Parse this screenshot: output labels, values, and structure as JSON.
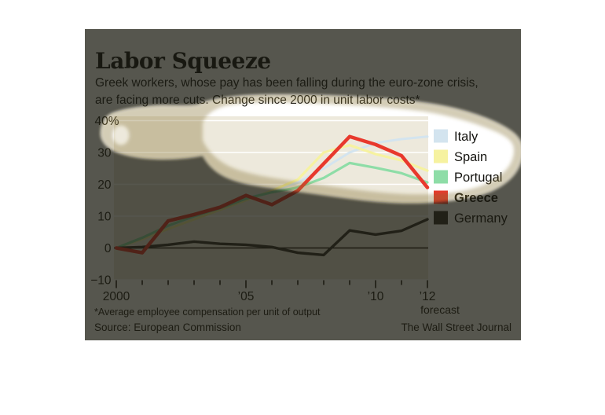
{
  "page": {
    "background": "#ffffff"
  },
  "card": {
    "background": "#ffffff"
  },
  "header": {
    "title": "Labor Squeeze",
    "subtitle_line1": "Greek workers, whose pay has been falling during the euro-zone crisis,",
    "subtitle_line2": "are facing more cuts. Change since 2000 in unit labor costs*"
  },
  "chart_data": {
    "type": "line",
    "title": "Labor Squeeze",
    "x": [
      2000,
      2001,
      2002,
      2003,
      2004,
      2005,
      2006,
      2007,
      2008,
      2009,
      2010,
      2011,
      2012
    ],
    "series": [
      {
        "name": "Italy",
        "color": "#d3e4ef",
        "width": 3,
        "emphasis": false,
        "values": [
          0,
          3.0,
          6.5,
          9.5,
          12.5,
          15.5,
          18.0,
          20.5,
          25.0,
          30.0,
          33.0,
          34.2,
          35.0
        ]
      },
      {
        "name": "Spain",
        "color": "#f6f2a0",
        "width": 3.2,
        "emphasis": false,
        "values": [
          0,
          2.8,
          6.0,
          9.0,
          12.0,
          15.0,
          18.0,
          21.5,
          30.0,
          32.3,
          29.5,
          27.5,
          24.3
        ]
      },
      {
        "name": "Portugal",
        "color": "#8edda7",
        "width": 3.2,
        "emphasis": false,
        "values": [
          0,
          3.2,
          7.0,
          10.0,
          12.5,
          15.5,
          17.5,
          19.0,
          22.0,
          26.7,
          25.2,
          23.5,
          20.6
        ]
      },
      {
        "name": "Greece",
        "color": "#e8392d",
        "width": 4.5,
        "emphasis": true,
        "values": [
          0,
          -1.5,
          8.5,
          10.5,
          12.8,
          16.5,
          13.6,
          18.0,
          26.5,
          35.0,
          32.5,
          29.0,
          19.0
        ]
      },
      {
        "name": "Germany",
        "color": "#32302c",
        "width": 3.4,
        "emphasis": false,
        "values": [
          0,
          0.3,
          1.0,
          2.0,
          1.3,
          1.0,
          0.3,
          -1.5,
          -2.2,
          5.5,
          4.2,
          5.4,
          9.0
        ]
      }
    ],
    "ylim": [
      -10,
      40
    ],
    "yticks": [
      40,
      30,
      20,
      10,
      0,
      -10
    ],
    "ytick_labels": [
      "40%",
      "30",
      "20",
      "10",
      "0",
      "−10"
    ],
    "x_axis_labels": [
      {
        "year": 2000,
        "label": "2000"
      },
      {
        "year": 2005,
        "label": "’05"
      },
      {
        "year": 2010,
        "label": "’10"
      },
      {
        "year": 2012,
        "label": "’12"
      }
    ],
    "grid": true,
    "legend_position": "right",
    "plot_bg": "#ede9dc",
    "grid_color": "#ffffff",
    "zero_line_color": "#1f1d18",
    "tick_color": "#1f1d18"
  },
  "footer": {
    "footnote": "*Average employee compensation per unit of output",
    "source": "Source: European Commission",
    "forecast_label": "forecast",
    "credit": "The Wall Street Journal"
  },
  "spotlight": {
    "dark_color": "rgba(30,28,19,0.74)",
    "halo_color": "rgba(128,108,48,0.34)"
  }
}
